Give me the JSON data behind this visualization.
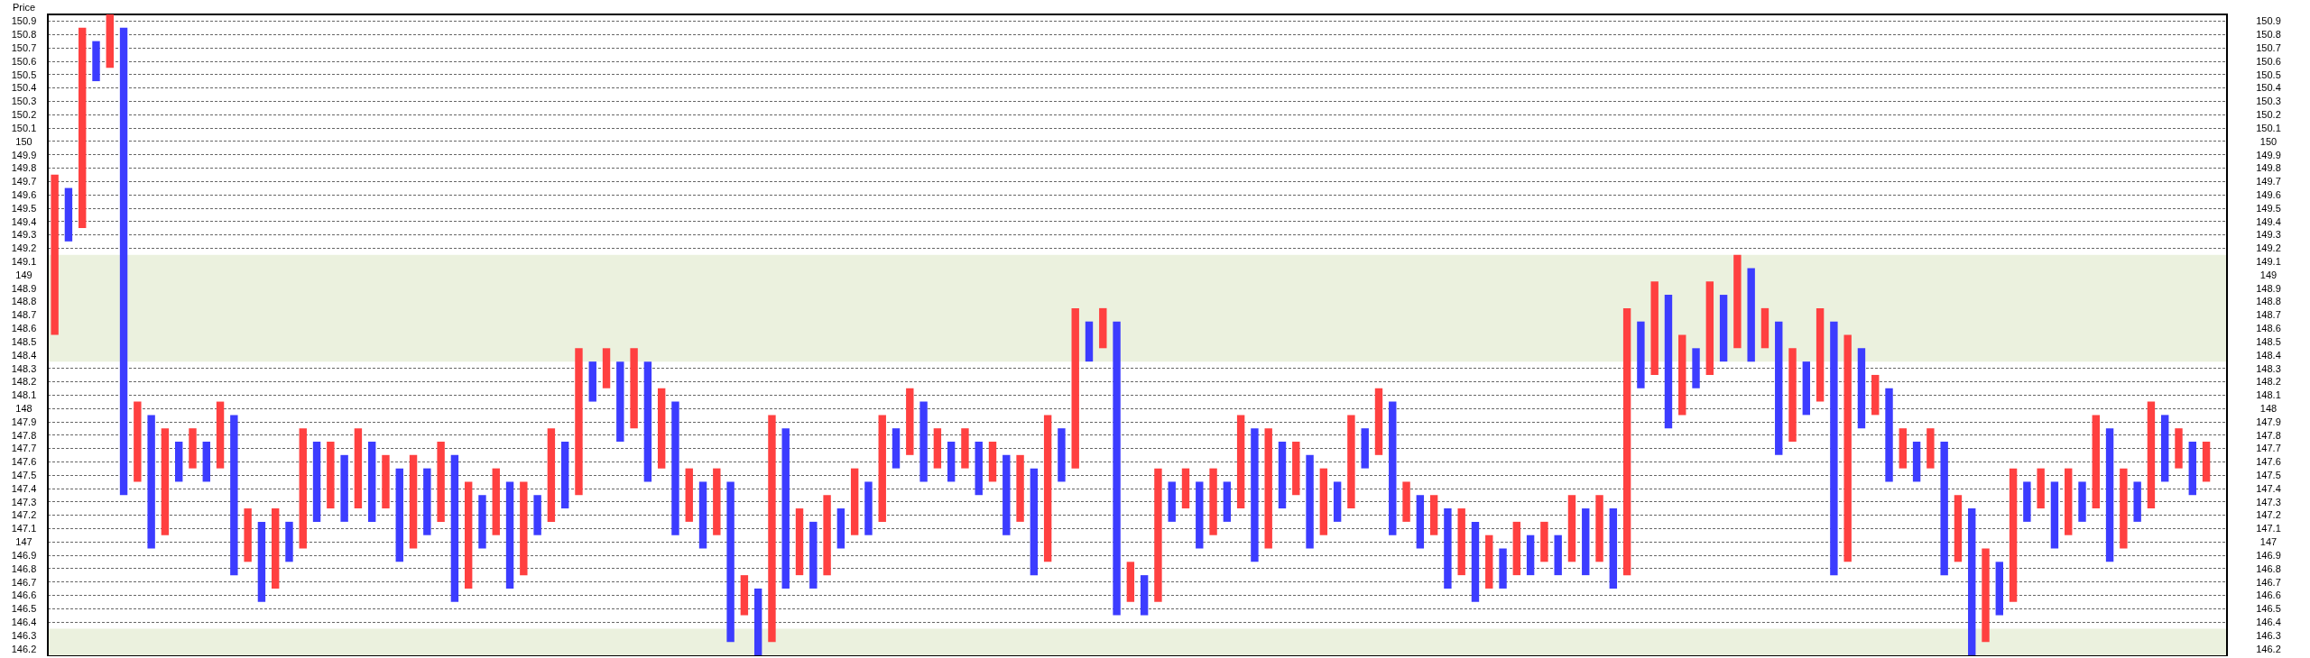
{
  "chart_data": {
    "type": "bar",
    "ylabel": "Price",
    "categories": [
      null,
      null,
      null,
      null,
      null,
      null,
      null,
      null,
      null,
      null,
      null,
      null,
      null,
      null,
      null,
      null,
      null,
      null,
      null,
      null,
      null,
      null,
      null,
      null,
      null,
      null,
      null,
      null,
      null,
      null,
      null,
      null,
      null,
      null,
      null,
      null,
      null,
      null,
      null,
      null,
      null,
      null,
      null,
      null,
      null,
      null,
      null,
      null,
      null,
      null,
      null,
      null,
      null,
      null,
      null,
      null,
      null,
      null,
      null,
      null,
      null,
      null,
      null,
      null,
      null,
      null,
      null,
      null,
      null,
      null,
      null,
      null,
      null,
      null,
      null,
      null,
      null,
      null,
      null,
      null,
      null,
      null,
      null,
      null,
      null,
      null,
      null,
      null,
      null,
      null,
      null,
      null,
      null,
      null,
      null,
      null,
      null,
      null,
      null,
      null,
      null,
      null,
      null,
      null,
      null,
      null,
      null,
      null,
      null,
      null,
      null,
      null,
      null,
      null,
      null,
      null,
      null,
      null,
      null,
      null,
      null,
      null,
      null,
      null,
      null,
      null,
      null,
      null,
      null,
      null,
      null,
      null,
      null,
      null,
      null,
      null,
      null,
      null,
      null,
      null,
      null,
      null,
      null,
      null,
      null,
      null,
      null,
      null,
      null,
      null,
      null,
      null,
      null,
      null,
      null,
      null,
      null,
      null
    ],
    "ylim": [
      146.15,
      150.95
    ],
    "yticks": [
      146.2,
      146.3,
      146.4,
      146.5,
      146.6,
      146.7,
      146.8,
      146.9,
      147,
      147.1,
      147.2,
      147.3,
      147.4,
      147.5,
      147.6,
      147.7,
      147.8,
      147.9,
      148,
      148.1,
      148.2,
      148.3,
      148.4,
      148.5,
      148.6,
      148.7,
      148.8,
      148.9,
      149,
      149.1,
      149.2,
      149.3,
      149.4,
      149.5,
      149.6,
      149.7,
      149.8,
      149.9,
      150,
      150.1,
      150.2,
      150.3,
      150.4,
      150.5,
      150.6,
      150.7,
      150.8,
      150.9
    ],
    "y2lim": [
      146.15,
      150.95
    ],
    "y2ticks": [
      146.2,
      146.3,
      146.4,
      146.5,
      146.6,
      146.7,
      146.8,
      146.9,
      147,
      147.1,
      147.2,
      147.3,
      147.4,
      147.5,
      147.6,
      147.7,
      147.8,
      147.9,
      148,
      148.1,
      148.2,
      148.3,
      148.4,
      148.5,
      148.6,
      148.7,
      148.8,
      148.9,
      149,
      149.1,
      149.2,
      149.3,
      149.4,
      149.5,
      149.6,
      149.7,
      149.8,
      149.9,
      150,
      150.1,
      150.2,
      150.3,
      150.4,
      150.5,
      150.6,
      150.7,
      150.8,
      150.9
    ],
    "tick_labels": "y",
    "grid": "y",
    "bands": [
      {
        "axis": "y",
        "from": 148.35,
        "to": 149.15,
        "color": "#ebf1de"
      },
      {
        "axis": "y",
        "from": 146.15,
        "to": 146.35,
        "color": "#ebf1de"
      }
    ],
    "series": [
      {
        "color": "#ff4040",
        "base": [
          148.55,
          null,
          149.35,
          null,
          150.55,
          null,
          147.45,
          null,
          147.05,
          null,
          147.55,
          null,
          147.55,
          null,
          146.85,
          null,
          146.65,
          null,
          146.95,
          null,
          147.25,
          null,
          147.25,
          null,
          147.25,
          null,
          146.95,
          null,
          147.15,
          null,
          146.65,
          null,
          147.05,
          null,
          146.75,
          null,
          147.15,
          null,
          147.35,
          null,
          148.15,
          null,
          147.85,
          null,
          147.55,
          null,
          147.15,
          null,
          147.05,
          null,
          146.45,
          null,
          146.25,
          null,
          146.75,
          null,
          146.75,
          null,
          147.05,
          null,
          147.15,
          null,
          147.65,
          null,
          147.55,
          null,
          147.55,
          null,
          147.45,
          null,
          147.15,
          null,
          146.85,
          null,
          147.55,
          null,
          148.45,
          null,
          146.55,
          null,
          146.55,
          null,
          147.25,
          null,
          147.05,
          null,
          147.25,
          null,
          146.95,
          null,
          147.35,
          null,
          147.05,
          null,
          147.25,
          null,
          147.65,
          null,
          147.15,
          null,
          147.05,
          null,
          146.75,
          null,
          146.65,
          null,
          146.75,
          null,
          146.85,
          null,
          146.85,
          null,
          146.85,
          null,
          146.75,
          null,
          148.25,
          null,
          147.95,
          null,
          148.25,
          null,
          148.45,
          null,
          148.45,
          null,
          147.75,
          null,
          148.05,
          null,
          146.85,
          null,
          147.95,
          null,
          147.55,
          null,
          147.55,
          null,
          146.85,
          null,
          146.25,
          null,
          146.55,
          null,
          147.25,
          null,
          147.05,
          null,
          147.25,
          null,
          146.95,
          null,
          147.25,
          null,
          147.55,
          null,
          147.45,
          null
        ],
        "values": [
          1.2,
          null,
          1.5,
          null,
          0.4,
          null,
          0.6,
          null,
          0.8,
          null,
          0.3,
          null,
          0.5,
          null,
          0.4,
          null,
          0.6,
          null,
          0.9,
          null,
          0.5,
          null,
          0.6,
          null,
          0.4,
          null,
          0.7,
          null,
          0.6,
          null,
          0.8,
          null,
          0.5,
          null,
          0.7,
          null,
          0.7,
          null,
          1.1,
          null,
          0.3,
          null,
          0.6,
          null,
          0.6,
          null,
          0.4,
          null,
          0.5,
          null,
          0.3,
          null,
          1.7,
          null,
          0.5,
          null,
          0.6,
          null,
          0.5,
          null,
          0.8,
          null,
          0.5,
          null,
          0.3,
          null,
          0.3,
          null,
          0.3,
          null,
          0.5,
          null,
          1.1,
          null,
          1.2,
          null,
          0.3,
          null,
          0.3,
          null,
          1.0,
          null,
          0.3,
          null,
          0.5,
          null,
          0.7,
          null,
          0.9,
          null,
          0.4,
          null,
          0.5,
          null,
          0.7,
          null,
          0.5,
          null,
          0.3,
          null,
          0.3,
          null,
          0.5,
          null,
          0.4,
          null,
          0.4,
          null,
          0.3,
          null,
          0.5,
          null,
          0.5,
          null,
          2.0,
          null,
          0.7,
          null,
          0.6,
          null,
          0.7,
          null,
          0.7,
          null,
          0.3,
          null,
          0.7,
          null,
          0.7,
          null,
          1.7,
          null,
          0.3,
          null,
          0.3,
          null,
          0.3,
          null,
          0.5,
          null,
          0.7,
          null,
          1.0,
          null,
          0.3,
          null,
          0.5,
          null,
          0.7,
          null,
          0.6,
          null,
          0.8,
          null,
          0.3,
          null,
          0.3,
          null
        ]
      },
      {
        "color": "#3c3cff",
        "base": [
          null,
          149.25,
          null,
          150.45,
          null,
          147.35,
          null,
          146.95,
          null,
          147.45,
          null,
          147.45,
          null,
          146.75,
          null,
          146.55,
          null,
          146.85,
          null,
          147.15,
          null,
          147.15,
          null,
          147.15,
          null,
          146.85,
          null,
          147.05,
          null,
          146.55,
          null,
          146.95,
          null,
          146.65,
          null,
          147.05,
          null,
          147.25,
          null,
          148.05,
          null,
          147.75,
          null,
          147.45,
          null,
          147.05,
          null,
          146.95,
          null,
          146.25,
          null,
          146.15,
          null,
          146.65,
          null,
          146.65,
          null,
          146.95,
          null,
          147.05,
          null,
          147.55,
          null,
          147.45,
          null,
          147.45,
          null,
          147.35,
          null,
          147.05,
          null,
          146.75,
          null,
          147.45,
          null,
          148.35,
          null,
          146.45,
          null,
          146.45,
          null,
          147.15,
          null,
          146.95,
          null,
          147.15,
          null,
          146.85,
          null,
          147.25,
          null,
          146.95,
          null,
          147.15,
          null,
          147.55,
          null,
          147.05,
          null,
          146.95,
          null,
          146.65,
          null,
          146.55,
          null,
          146.65,
          null,
          146.75,
          null,
          146.75,
          null,
          146.75,
          null,
          146.65,
          null,
          148.15,
          null,
          147.85,
          null,
          148.15,
          null,
          148.35,
          null,
          148.35,
          null,
          147.65,
          null,
          147.95,
          null,
          146.75,
          null,
          147.85,
          null,
          147.45,
          null,
          147.45,
          null,
          146.75,
          null,
          146.15,
          null,
          146.45,
          null,
          147.15,
          null,
          146.95,
          null,
          147.15,
          null,
          146.85,
          null,
          147.15,
          null,
          147.45,
          null,
          147.35,
          null,
          null
        ],
        "values": [
          null,
          0.4,
          null,
          0.3,
          null,
          3.5,
          null,
          1.0,
          null,
          0.3,
          null,
          0.3,
          null,
          1.2,
          null,
          0.6,
          null,
          0.3,
          null,
          0.6,
          null,
          0.5,
          null,
          0.6,
          null,
          0.7,
          null,
          0.5,
          null,
          1.1,
          null,
          0.4,
          null,
          0.8,
          null,
          0.3,
          null,
          0.5,
          null,
          0.3,
          null,
          0.6,
          null,
          0.9,
          null,
          1.0,
          null,
          0.5,
          null,
          1.2,
          null,
          0.5,
          null,
          1.2,
          null,
          0.5,
          null,
          0.3,
          null,
          0.4,
          null,
          0.3,
          null,
          0.6,
          null,
          0.3,
          null,
          0.4,
          null,
          0.6,
          null,
          0.8,
          null,
          0.4,
          null,
          0.3,
          null,
          2.2,
          null,
          0.3,
          null,
          0.3,
          null,
          0.5,
          null,
          0.3,
          null,
          1.0,
          null,
          0.5,
          null,
          0.7,
          null,
          0.3,
          null,
          0.3,
          null,
          1.0,
          null,
          0.4,
          null,
          0.6,
          null,
          0.6,
          null,
          0.3,
          null,
          0.3,
          null,
          0.3,
          null,
          0.5,
          null,
          0.6,
          null,
          0.5,
          null,
          1.0,
          null,
          0.3,
          null,
          0.5,
          null,
          0.7,
          null,
          1.0,
          null,
          0.4,
          null,
          1.9,
          null,
          0.6,
          null,
          0.7,
          null,
          0.3,
          null,
          1.0,
          null,
          1.1,
          null,
          0.4,
          null,
          0.3,
          null,
          0.5,
          null,
          0.3,
          null,
          1.0,
          null,
          0.3,
          null,
          0.5,
          null,
          0.4,
          null,
          null
        ]
      }
    ]
  }
}
